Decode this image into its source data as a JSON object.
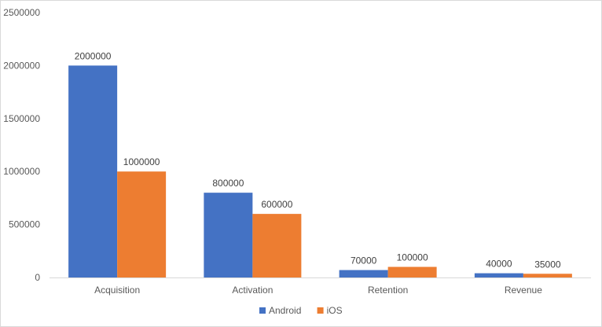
{
  "chart_data": {
    "type": "bar",
    "categories": [
      "Acquisition",
      "Activation",
      "Retention",
      "Revenue"
    ],
    "series": [
      {
        "name": "Android",
        "values": [
          2000000,
          800000,
          70000,
          40000
        ],
        "color": "#4472C4"
      },
      {
        "name": "iOS",
        "values": [
          1000000,
          600000,
          100000,
          35000
        ],
        "color": "#ED7D31"
      }
    ],
    "yticks": [
      "0",
      "500000",
      "1000000",
      "1500000",
      "2000000",
      "2500000"
    ],
    "ylim": [
      0,
      2500000
    ],
    "grid": false,
    "legend": "bottom-center",
    "data_labels": true
  }
}
